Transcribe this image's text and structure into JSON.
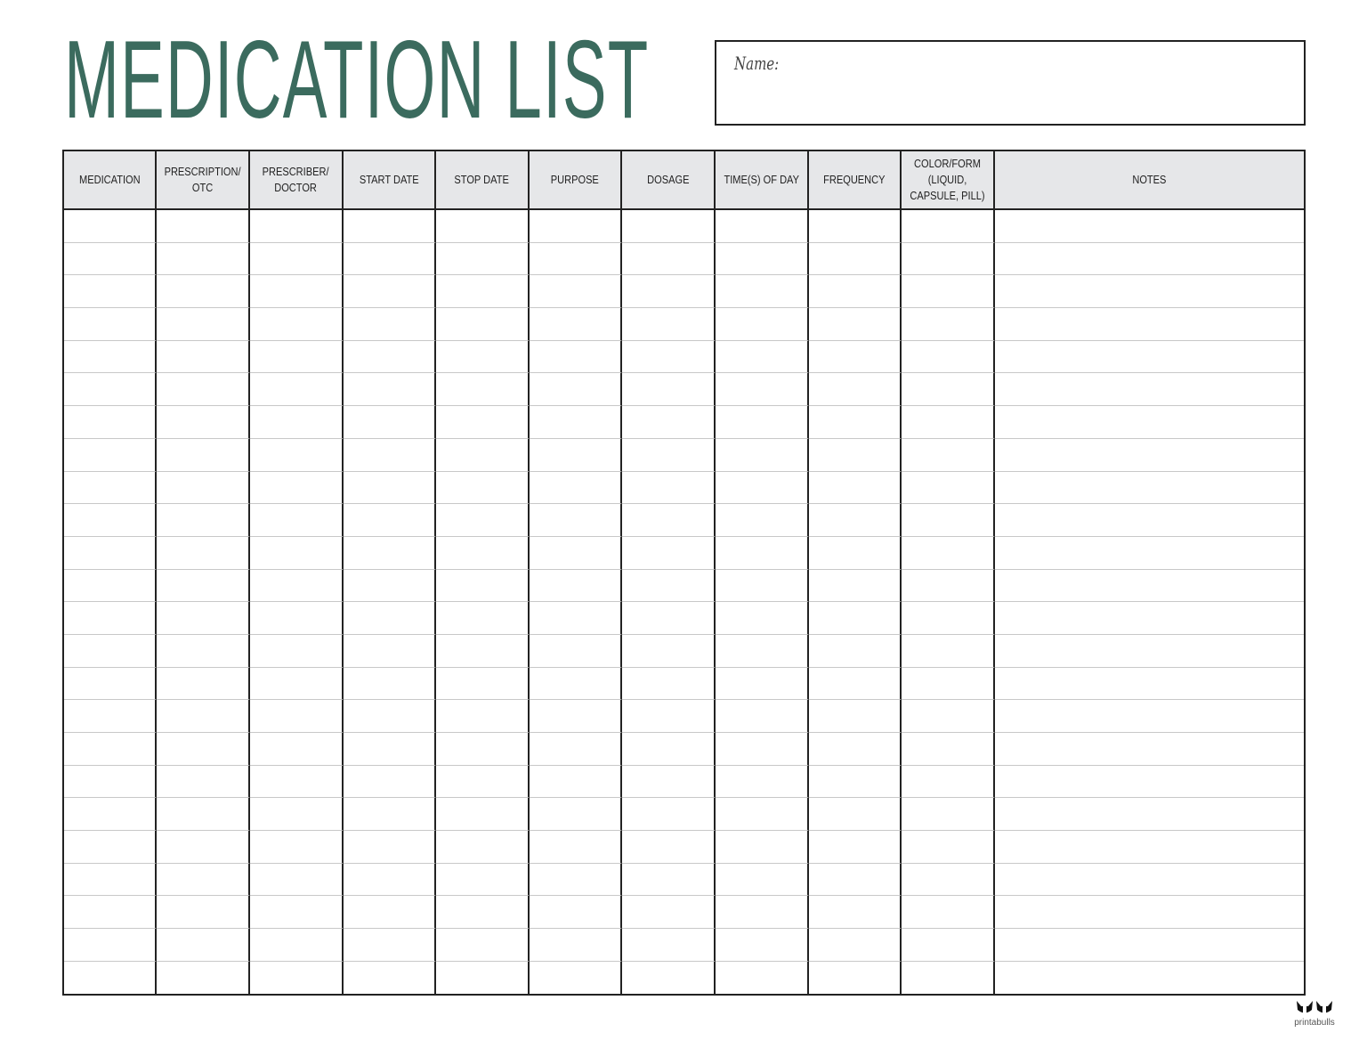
{
  "title": "MEDICATION LIST",
  "name_label": "Name:",
  "name_value": "",
  "table": {
    "columns": [
      "MEDICATION",
      "PRESCRIPTION/\nOTC",
      "PRESCRIBER/\nDOCTOR",
      "START DATE",
      "STOP DATE",
      "PURPOSE",
      "DOSAGE",
      "TIME(S) OF DAY",
      "FREQUENCY",
      "COLOR/FORM\n(LIQUID,\nCAPSULE, PILL)",
      "NOTES"
    ],
    "row_count": 24
  },
  "colors": {
    "title": "#3b6b5e",
    "header_bg": "#e6e7e9",
    "border": "#222222",
    "row_line": "#c8c8c8"
  },
  "logo": {
    "text": "printabulls",
    "icon": "bulldog-icon"
  }
}
